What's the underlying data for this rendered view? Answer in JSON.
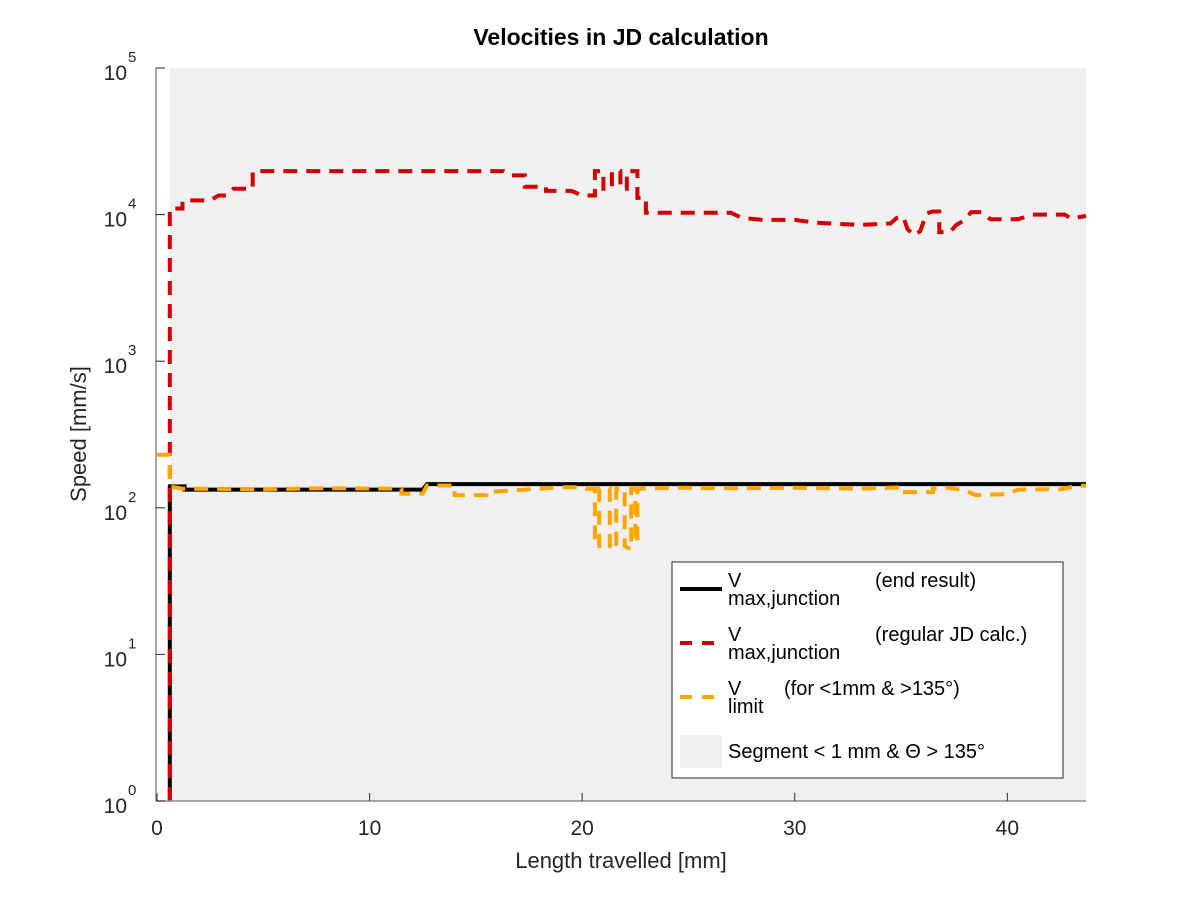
{
  "chart_data": {
    "type": "line",
    "title": "Velocities in JD calculation",
    "xlabel": "Length travelled [mm]",
    "ylabel": "Speed [mm/s]",
    "xlim": [
      0,
      43.7
    ],
    "ylim": [
      1,
      100000
    ],
    "yscale": "log",
    "grid": false,
    "legend_position": "bottom-right",
    "x_ticks": [
      {
        "value": 0,
        "label": "0"
      },
      {
        "value": 10,
        "label": "10"
      },
      {
        "value": 20,
        "label": "20"
      },
      {
        "value": 30,
        "label": "30"
      },
      {
        "value": 40,
        "label": "40"
      }
    ],
    "y_ticks": [
      {
        "value": 1,
        "base": "10",
        "exp": "0"
      },
      {
        "value": 10,
        "base": "10",
        "exp": "1"
      },
      {
        "value": 100,
        "base": "10",
        "exp": "2"
      },
      {
        "value": 1000,
        "base": "10",
        "exp": "3"
      },
      {
        "value": 10000,
        "base": "10",
        "exp": "4"
      },
      {
        "value": 100000,
        "base": "10",
        "exp": "5"
      }
    ],
    "shaded_region": {
      "name": "Segment < 1 mm & Θ > 135°",
      "x_start": 0.6,
      "x_end": 43.7,
      "color": "#f0f0f0"
    },
    "series": [
      {
        "name": "V_max,junction (end result)",
        "legend_main": "V",
        "legend_sub": "max,junction",
        "legend_note": "(end result)",
        "color": "#000000",
        "style": "solid",
        "points": [
          [
            0.6,
            1
          ],
          [
            0.6,
            140
          ],
          [
            1.3,
            140
          ],
          [
            1.3,
            133
          ],
          [
            12.5,
            133
          ],
          [
            12.7,
            145
          ],
          [
            43.7,
            145
          ]
        ]
      },
      {
        "name": "V_max,junction (regular JD calc.)",
        "legend_main": "V",
        "legend_sub": "max,junction",
        "legend_note": "(regular JD calc.)",
        "color": "#d10000",
        "style": "dashed",
        "points": [
          [
            0.6,
            1
          ],
          [
            0.6,
            11000
          ],
          [
            1.2,
            11000
          ],
          [
            1.2,
            12500
          ],
          [
            2.5,
            12500
          ],
          [
            2.9,
            13500
          ],
          [
            3.3,
            13500
          ],
          [
            3.6,
            15000
          ],
          [
            4.5,
            15000
          ],
          [
            4.5,
            19800
          ],
          [
            16.3,
            19800
          ],
          [
            16.6,
            18500
          ],
          [
            17.3,
            18500
          ],
          [
            17.3,
            15500
          ],
          [
            18.3,
            15500
          ],
          [
            18.3,
            14500
          ],
          [
            19.5,
            14500
          ],
          [
            20.0,
            13500
          ],
          [
            20.6,
            13500
          ],
          [
            20.6,
            19800
          ],
          [
            21.0,
            19800
          ],
          [
            21.0,
            15000
          ],
          [
            21.4,
            15000
          ],
          [
            21.4,
            19800
          ],
          [
            21.8,
            19800
          ],
          [
            21.8,
            15000
          ],
          [
            22.1,
            15000
          ],
          [
            22.1,
            19800
          ],
          [
            22.6,
            19800
          ],
          [
            22.6,
            13000
          ],
          [
            23.0,
            13000
          ],
          [
            23.0,
            10300
          ],
          [
            27.0,
            10300
          ],
          [
            27.5,
            9500
          ],
          [
            28.5,
            9200
          ],
          [
            30.0,
            9200
          ],
          [
            31.0,
            8800
          ],
          [
            33.0,
            8500
          ],
          [
            34.5,
            8700
          ],
          [
            34.8,
            9500
          ],
          [
            35.1,
            9700
          ],
          [
            35.3,
            8000
          ],
          [
            35.6,
            7200
          ],
          [
            35.9,
            7700
          ],
          [
            36.2,
            10200
          ],
          [
            36.5,
            10500
          ],
          [
            36.8,
            10500
          ],
          [
            36.8,
            7600
          ],
          [
            37.3,
            7600
          ],
          [
            37.6,
            8500
          ],
          [
            38.0,
            9200
          ],
          [
            38.3,
            10400
          ],
          [
            38.8,
            10400
          ],
          [
            39.2,
            9300
          ],
          [
            40.5,
            9300
          ],
          [
            41.2,
            10000
          ],
          [
            42.7,
            10000
          ],
          [
            43.0,
            9400
          ],
          [
            43.7,
            9800
          ]
        ]
      },
      {
        "name": "V_limit (for <1mm & >135°)",
        "legend_main": "V",
        "legend_sub": "limit",
        "legend_note": "(for <1mm & >135°)",
        "color": "#ffa500",
        "style": "dashed",
        "points": [
          [
            0,
            230
          ],
          [
            0.6,
            230
          ],
          [
            0.6,
            140
          ],
          [
            1.2,
            135
          ],
          [
            5,
            134
          ],
          [
            8,
            136
          ],
          [
            11.5,
            135
          ],
          [
            11.5,
            125
          ],
          [
            12.5,
            125
          ],
          [
            12.7,
            142
          ],
          [
            14.0,
            142
          ],
          [
            14.0,
            122
          ],
          [
            15.5,
            122
          ],
          [
            15.5,
            128
          ],
          [
            17.0,
            132
          ],
          [
            19.0,
            138
          ],
          [
            20.0,
            138
          ],
          [
            20.2,
            135
          ],
          [
            20.6,
            135
          ],
          [
            20.6,
            55
          ],
          [
            20.8,
            55
          ],
          [
            20.8,
            135
          ],
          [
            21.3,
            135
          ],
          [
            21.3,
            55
          ],
          [
            21.6,
            52
          ],
          [
            21.6,
            135
          ],
          [
            22.0,
            135
          ],
          [
            22.0,
            55
          ],
          [
            22.3,
            52
          ],
          [
            22.3,
            135
          ],
          [
            22.5,
            135
          ],
          [
            22.5,
            58
          ],
          [
            22.6,
            58
          ],
          [
            22.6,
            135
          ],
          [
            24.5,
            137
          ],
          [
            27.0,
            136
          ],
          [
            30.0,
            137
          ],
          [
            33.0,
            135
          ],
          [
            35.0,
            138
          ],
          [
            35.0,
            128
          ],
          [
            36.5,
            128
          ],
          [
            36.5,
            135
          ],
          [
            37.0,
            138
          ],
          [
            38.0,
            132
          ],
          [
            38.5,
            122
          ],
          [
            40.0,
            124
          ],
          [
            40.5,
            133
          ],
          [
            42.5,
            134
          ],
          [
            43.2,
            140
          ],
          [
            43.7,
            142
          ]
        ]
      }
    ]
  },
  "legend": {
    "entries": [
      {
        "main": "V",
        "sub": "max,junction",
        "note": "(end result)"
      },
      {
        "main": "V",
        "sub": "max,junction",
        "note": "(regular JD calc.)"
      },
      {
        "main": "V",
        "sub": "limit",
        "note": "(for <1mm & >135°)"
      },
      {
        "label": "Segment < 1 mm & Θ > 135°"
      }
    ]
  }
}
